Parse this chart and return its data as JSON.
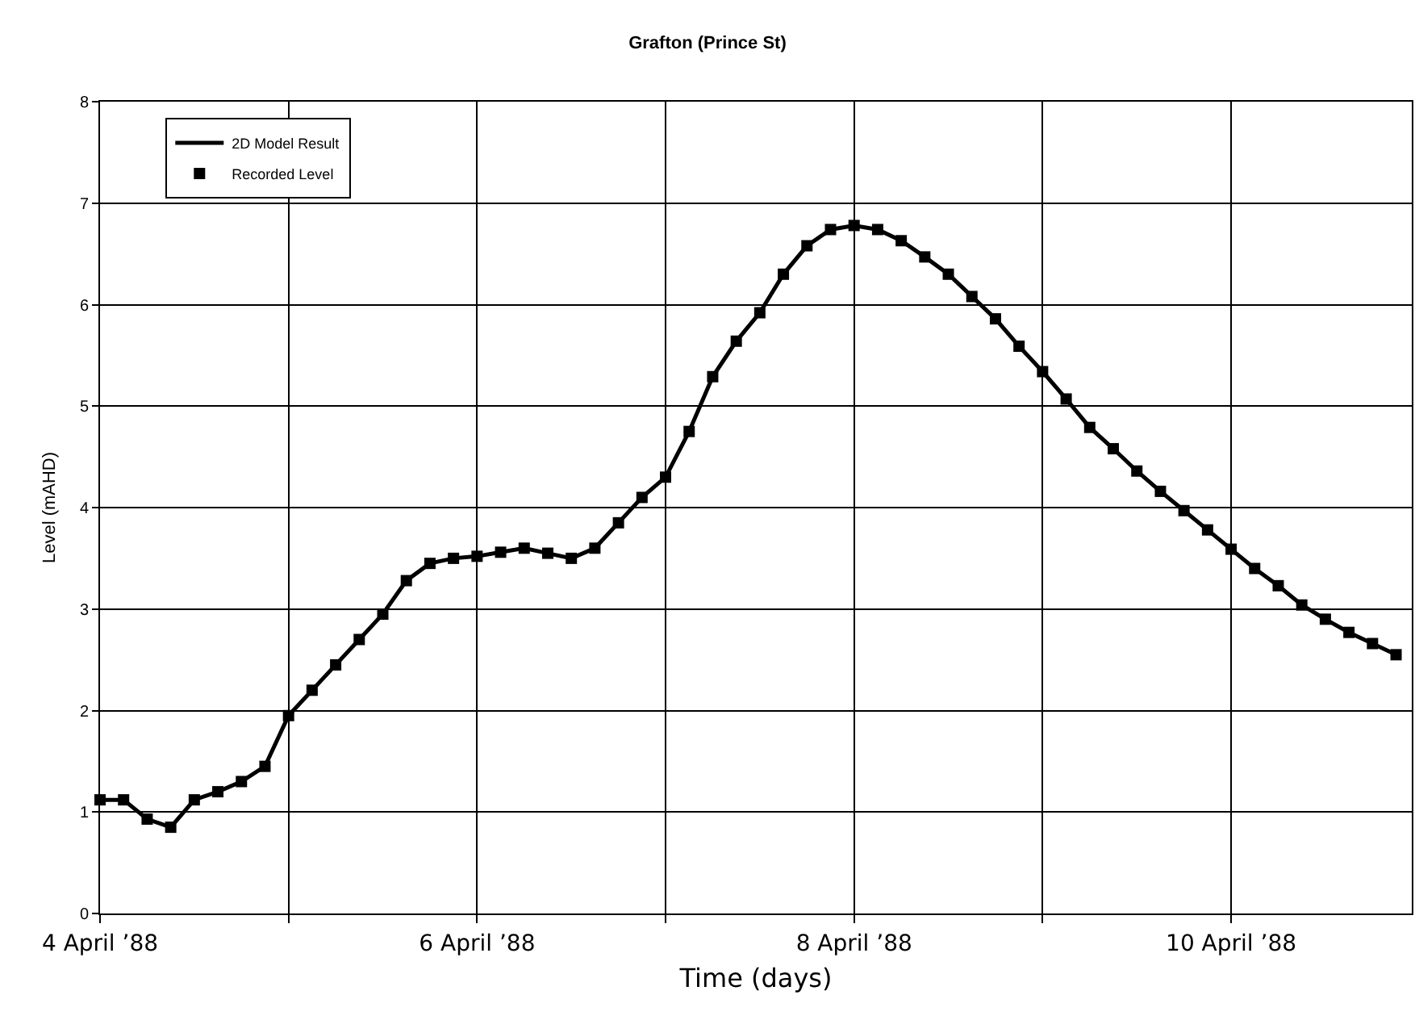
{
  "chart_data": {
    "type": "line",
    "title": "Grafton (Prince St)",
    "xlabel": "Time (days)",
    "ylabel": "Level (mAHD)",
    "x": [
      "1988-04-04T00:00",
      "1988-04-04T03:00",
      "1988-04-04T06:00",
      "1988-04-04T09:00",
      "1988-04-04T12:00",
      "1988-04-04T15:00",
      "1988-04-04T18:00",
      "1988-04-04T21:00",
      "1988-04-05T00:00",
      "1988-04-05T03:00",
      "1988-04-05T06:00",
      "1988-04-05T09:00",
      "1988-04-05T12:00",
      "1988-04-05T15:00",
      "1988-04-05T18:00",
      "1988-04-05T21:00",
      "1988-04-06T00:00",
      "1988-04-06T03:00",
      "1988-04-06T06:00",
      "1988-04-06T09:00",
      "1988-04-06T12:00",
      "1988-04-06T15:00",
      "1988-04-06T18:00",
      "1988-04-06T21:00",
      "1988-04-07T00:00",
      "1988-04-07T03:00",
      "1988-04-07T06:00",
      "1988-04-07T09:00",
      "1988-04-07T12:00",
      "1988-04-07T15:00",
      "1988-04-07T18:00",
      "1988-04-07T21:00",
      "1988-04-08T00:00",
      "1988-04-08T03:00",
      "1988-04-08T06:00",
      "1988-04-08T09:00",
      "1988-04-08T12:00",
      "1988-04-08T15:00",
      "1988-04-08T18:00",
      "1988-04-08T21:00",
      "1988-04-09T00:00",
      "1988-04-09T03:00",
      "1988-04-09T06:00",
      "1988-04-09T09:00",
      "1988-04-09T12:00",
      "1988-04-09T15:00",
      "1988-04-09T18:00",
      "1988-04-09T21:00",
      "1988-04-10T00:00",
      "1988-04-10T03:00",
      "1988-04-10T06:00",
      "1988-04-10T09:00",
      "1988-04-10T12:00",
      "1988-04-10T15:00",
      "1988-04-10T18:00",
      "1988-04-10T21:00"
    ],
    "series": [
      {
        "name": "2D Model Result",
        "color": "#000000",
        "marker": "none",
        "line_style": "solid",
        "values": [
          1.12,
          1.12,
          0.93,
          0.85,
          1.12,
          1.2,
          1.3,
          1.45,
          1.95,
          2.2,
          2.45,
          2.7,
          2.95,
          3.28,
          3.45,
          3.5,
          3.52,
          3.56,
          3.6,
          3.55,
          3.5,
          3.6,
          3.85,
          4.1,
          4.3,
          4.75,
          5.29,
          5.64,
          5.92,
          6.3,
          6.58,
          6.74,
          6.78,
          6.74,
          6.63,
          6.47,
          6.3,
          6.08,
          5.86,
          5.59,
          5.34,
          5.07,
          4.79,
          4.58,
          4.36,
          4.16,
          3.97,
          3.78,
          3.59,
          3.4,
          3.23,
          3.04,
          2.9,
          2.77,
          2.66,
          2.55
        ]
      },
      {
        "name": "Recorded Level",
        "type": "scatter",
        "color": "#000000",
        "marker": "square",
        "values": [
          1.12,
          1.12,
          0.93,
          0.85,
          1.12,
          1.2,
          1.3,
          1.45,
          1.95,
          2.2,
          2.45,
          2.7,
          2.95,
          3.28,
          3.45,
          3.5,
          3.52,
          3.56,
          3.6,
          3.55,
          3.5,
          3.6,
          3.85,
          4.1,
          4.3,
          4.75,
          5.29,
          5.64,
          5.92,
          6.3,
          6.58,
          6.74,
          6.78,
          6.74,
          6.63,
          6.47,
          6.3,
          6.08,
          5.86,
          5.59,
          5.34,
          5.07,
          4.79,
          4.58,
          4.36,
          4.16,
          3.97,
          3.78,
          3.59,
          3.4,
          3.23,
          3.04,
          2.9,
          2.77,
          2.66,
          2.55
        ]
      }
    ],
    "xlim": [
      "1988-04-04T00:00",
      "1988-04-10T23:00"
    ],
    "xticks": [
      {
        "value": "1988-04-04",
        "label": "4 April ’88"
      },
      {
        "value": "1988-04-05",
        "label": null
      },
      {
        "value": "1988-04-06",
        "label": "6 April ’88"
      },
      {
        "value": "1988-04-07",
        "label": null
      },
      {
        "value": "1988-04-08",
        "label": "8 April ’88"
      },
      {
        "value": "1988-04-09",
        "label": null
      },
      {
        "value": "1988-04-10",
        "label": "10 April ’88"
      }
    ],
    "ylim": [
      0,
      8
    ],
    "yticks": [
      0,
      1,
      2,
      3,
      4,
      5,
      6,
      7,
      8
    ],
    "grid": true,
    "legend": "top left"
  }
}
